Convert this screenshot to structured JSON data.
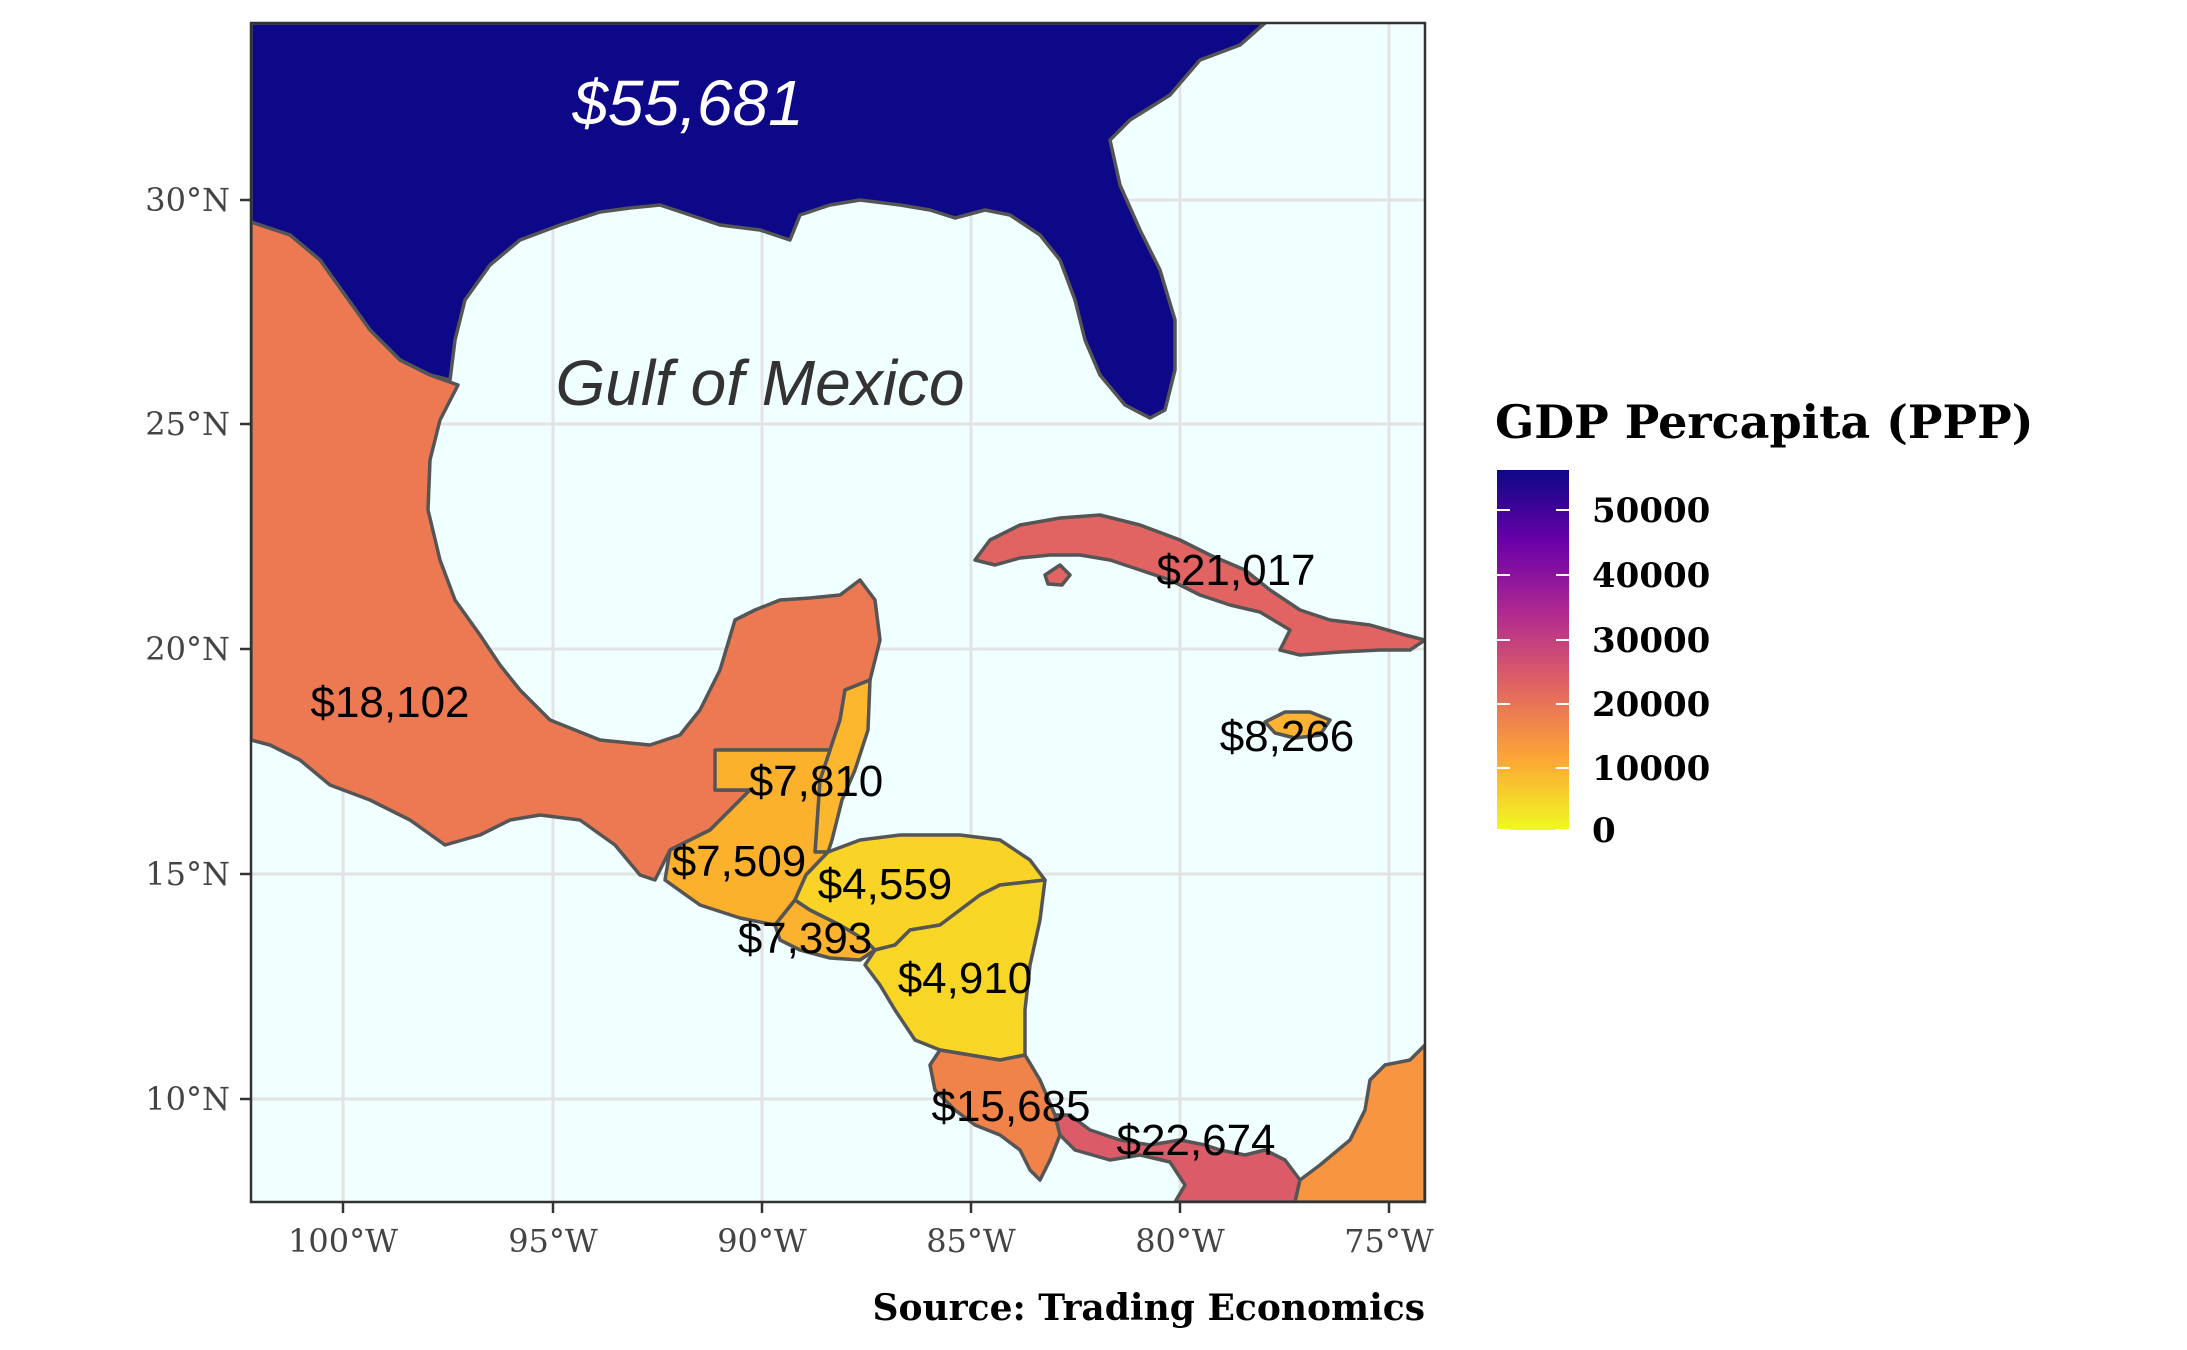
{
  "map": {
    "water_label": "Gulf of Mexico",
    "us_label": "$55,681",
    "x_ticks": [
      "100°W",
      "95°W",
      "90°W",
      "85°W",
      "80°W",
      "75°W"
    ],
    "y_ticks": [
      "30°N",
      "25°N",
      "20°N",
      "15°N",
      "10°N"
    ],
    "countries": [
      {
        "name": "mexico",
        "label": "$18,102",
        "value": 18102,
        "color": "#ED7953"
      },
      {
        "name": "cuba",
        "label": "$21,017",
        "value": 21017,
        "color": "#E16462"
      },
      {
        "name": "jamaica",
        "label": "$8,266",
        "value": 8266,
        "color": "#FDB32F"
      },
      {
        "name": "belize",
        "label": "$7,810",
        "value": 7810,
        "color": "#FCB72F"
      },
      {
        "name": "guatemala",
        "label": "$7,509",
        "value": 7509,
        "color": "#FBB12C"
      },
      {
        "name": "honduras",
        "label": "$4,559",
        "value": 4559,
        "color": "#F9D426"
      },
      {
        "name": "el-salvador",
        "label": "$7,393",
        "value": 7393,
        "color": "#FBB32F"
      },
      {
        "name": "nicaragua",
        "label": "$4,910",
        "value": 4910,
        "color": "#F8D625"
      },
      {
        "name": "costa-rica",
        "label": "$15,685",
        "value": 15685,
        "color": "#F0834A"
      },
      {
        "name": "panama",
        "label": "$22,674",
        "value": 22674,
        "color": "#DB5C68"
      }
    ],
    "colors": {
      "usa": "#0D0887",
      "colombia": "#F89540",
      "water": "#F0FFFF",
      "grid": "#E3E3E3"
    }
  },
  "legend": {
    "title": "GDP Percapita (PPP)",
    "ticks": [
      "50000",
      "40000",
      "30000",
      "20000",
      "10000",
      "0"
    ],
    "gradient": [
      "#0D0887",
      "#6A00A8",
      "#B12A90",
      "#E16462",
      "#FCA636",
      "#F0F921"
    ]
  },
  "caption": "Source: Trading Economics"
}
